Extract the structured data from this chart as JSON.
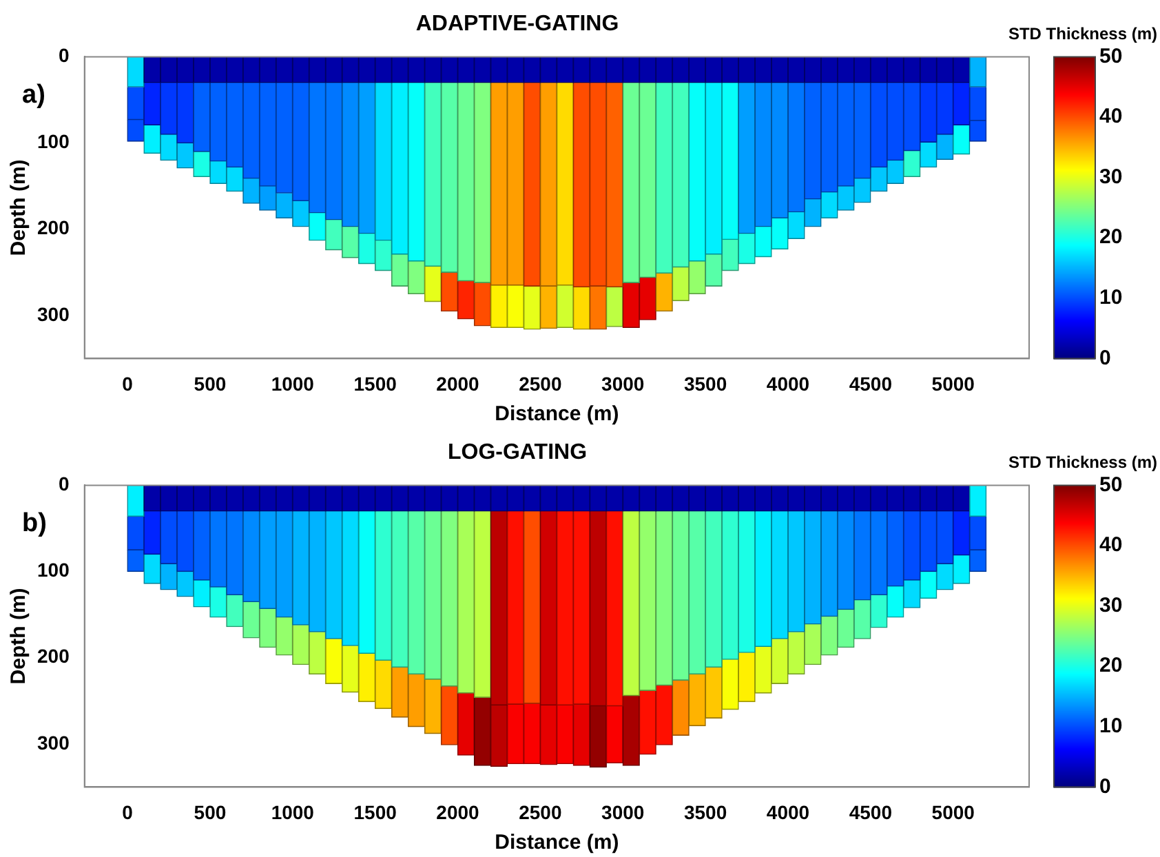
{
  "chart_data": [
    {
      "type": "bar",
      "title": "ADAPTIVE-GATING",
      "xlabel": "Distance (m)",
      "ylabel": "Depth (m)",
      "clabel": "STD Thickness (m)",
      "annotations": [
        "a)"
      ],
      "stacked": true,
      "x": [
        50,
        150,
        250,
        350,
        450,
        550,
        650,
        750,
        850,
        950,
        1050,
        1150,
        1250,
        1350,
        1450,
        1550,
        1650,
        1750,
        1850,
        1950,
        2050,
        2150,
        2250,
        2350,
        2450,
        2550,
        2650,
        2750,
        2850,
        2950,
        3050,
        3150,
        3250,
        3350,
        3450,
        3550,
        3650,
        3750,
        3850,
        3950,
        4050,
        4150,
        4250,
        4350,
        4450,
        4550,
        4650,
        4750,
        4850,
        4950,
        5050,
        5150
      ],
      "xlim": [
        0,
        5200
      ],
      "xticks": [
        0,
        500,
        1000,
        1500,
        2000,
        2500,
        3000,
        3500,
        4000,
        4500,
        5000
      ],
      "ylim": [
        350,
        0
      ],
      "yticks": [
        0,
        100,
        200,
        300
      ],
      "clim": [
        0,
        50
      ],
      "cticks": [
        0,
        10,
        20,
        30,
        40,
        50
      ],
      "series": [
        {
          "values": [
            35,
            30,
            30,
            30,
            30,
            30,
            30,
            30,
            30,
            30,
            30,
            30,
            30,
            30,
            30,
            30,
            30,
            30,
            30,
            30,
            30,
            30,
            30,
            30,
            30,
            30,
            30,
            30,
            30,
            30,
            30,
            30,
            30,
            30,
            30,
            30,
            30,
            30,
            30,
            30,
            30,
            30,
            30,
            30,
            30,
            30,
            30,
            30,
            30,
            30,
            30,
            35
          ],
          "cvalues": [
            17,
            2,
            2,
            2,
            2,
            2,
            2,
            2,
            2,
            2,
            2,
            2,
            2,
            2,
            2,
            2,
            2,
            2,
            2,
            2,
            2,
            2,
            2,
            2,
            2,
            2,
            2,
            2,
            2,
            2,
            2,
            2,
            2,
            2,
            2,
            2,
            2,
            2,
            2,
            2,
            2,
            2,
            2,
            2,
            2,
            2,
            2,
            2,
            2,
            2,
            2,
            15
          ],
          "colors": [
            "#00dbff",
            "#0000a8",
            "#0000a8",
            "#0000a8",
            "#0000a8",
            "#0000a8",
            "#0000a8",
            "#0000a8",
            "#0000a8",
            "#0000a8",
            "#0000a8",
            "#0000a8",
            "#0000a8",
            "#0000a8",
            "#0000a8",
            "#0000a8",
            "#0000a8",
            "#0000a8",
            "#0000a8",
            "#0000a8",
            "#0000a8",
            "#0000a8",
            "#0000a8",
            "#0000a8",
            "#0000a8",
            "#0000a8",
            "#0000a8",
            "#0000a8",
            "#0000a8",
            "#0000a8",
            "#0000a8",
            "#0000a8",
            "#0000a8",
            "#0000a8",
            "#0000a8",
            "#0000a8",
            "#0000a8",
            "#0000a8",
            "#0000a8",
            "#0000a8",
            "#0000a8",
            "#0000a8",
            "#0000a8",
            "#0000a8",
            "#0000a8",
            "#0000a8",
            "#0000a8",
            "#0000a8",
            "#0000a8",
            "#0000a8",
            "#0000a8",
            "#00b3ff"
          ]
        },
        {
          "values": [
            38,
            49,
            60,
            70,
            80,
            91,
            98,
            111,
            120,
            128,
            137,
            151,
            159,
            167,
            175,
            183,
            199,
            207,
            213,
            220,
            230,
            232,
            235,
            235,
            236,
            236,
            235,
            237,
            236,
            237,
            232,
            226,
            221,
            214,
            207,
            199,
            182,
            175,
            167,
            157,
            150,
            135,
            127,
            120,
            111,
            98,
            90,
            79,
            69,
            60,
            49,
            39
          ],
          "cvalues": [
            10,
            8,
            9,
            9,
            11,
            11,
            11,
            11,
            11,
            11,
            11,
            12,
            12,
            13,
            14,
            17,
            18,
            19,
            22,
            23,
            24,
            25,
            36,
            36,
            40,
            36,
            33,
            40,
            40,
            39,
            24,
            24,
            22,
            22,
            19,
            18,
            19,
            14,
            13,
            13,
            12,
            11,
            11,
            11,
            11,
            10,
            10,
            10,
            9,
            9,
            8,
            10
          ],
          "colors": [
            "#004dff",
            "#0024ff",
            "#0038ff",
            "#0038ff",
            "#0061ff",
            "#0061ff",
            "#0061ff",
            "#0061ff",
            "#0061ff",
            "#0061ff",
            "#0061ff",
            "#0075ff",
            "#0075ff",
            "#008aff",
            "#009eff",
            "#00dbff",
            "#00f0ff",
            "#05fffa",
            "#42ffbd",
            "#57ffa8",
            "#6bff94",
            "#80ff80",
            "#ff9e00",
            "#ff9e00",
            "#ff4d00",
            "#ff9e00",
            "#ffdb00",
            "#ff4d00",
            "#ff4d00",
            "#ff6100",
            "#6bff94",
            "#6bff94",
            "#42ffbd",
            "#42ffbd",
            "#05fffa",
            "#00f0ff",
            "#05fffa",
            "#009eff",
            "#008aff",
            "#008aff",
            "#0075ff",
            "#0061ff",
            "#0061ff",
            "#0061ff",
            "#0061ff",
            "#004dff",
            "#004dff",
            "#004dff",
            "#0038ff",
            "#0038ff",
            "#0024ff",
            "#004dff"
          ]
        },
        {
          "values": [
            25,
            33,
            30,
            29,
            29,
            26,
            28,
            29,
            28,
            29,
            30,
            32,
            35,
            36,
            35,
            35,
            37,
            38,
            41,
            45,
            44,
            50,
            49,
            49,
            50,
            49,
            49,
            49,
            50,
            46,
            52,
            49,
            44,
            39,
            38,
            37,
            36,
            35,
            35,
            36,
            31,
            32,
            30,
            28,
            28,
            28,
            27,
            30,
            29,
            29,
            34,
            24
          ],
          "cvalues": [
            10,
            18,
            17,
            16,
            20,
            17,
            17,
            15,
            14,
            15,
            16,
            19,
            22,
            23,
            20,
            21,
            24,
            25,
            30,
            40,
            42,
            40,
            32,
            31,
            30,
            35,
            29,
            33,
            38,
            28,
            45,
            45,
            35,
            28,
            26,
            23,
            22,
            20,
            19,
            19,
            17,
            15,
            17,
            16,
            16,
            16,
            16,
            21,
            17,
            15,
            19,
            10
          ],
          "colors": [
            "#004dff",
            "#00f0ff",
            "#00dbff",
            "#00c7ff",
            "#1affe6",
            "#00dbff",
            "#00dbff",
            "#00b3ff",
            "#009eff",
            "#00b3ff",
            "#00c7ff",
            "#05fffa",
            "#42ffbd",
            "#57ffa8",
            "#1affe6",
            "#2effd1",
            "#6bff94",
            "#80ff80",
            "#e6ff1a",
            "#ff4d00",
            "#ff2400",
            "#ff4d00",
            "#fff000",
            "#faff05",
            "#e6ff1a",
            "#ffb300",
            "#d1ff2e",
            "#ffdb00",
            "#ff7500",
            "#bdff42",
            "#e60000",
            "#e60000",
            "#ffb300",
            "#bdff42",
            "#94ff6b",
            "#57ffa8",
            "#42ffbd",
            "#1affe6",
            "#05fffa",
            "#05fffa",
            "#00dbff",
            "#00b3ff",
            "#00dbff",
            "#00c7ff",
            "#00c7ff",
            "#00c7ff",
            "#00c7ff",
            "#2effd1",
            "#00dbff",
            "#00b3ff",
            "#05fffa",
            "#004dff"
          ]
        }
      ]
    },
    {
      "type": "bar",
      "title": "LOG-GATING",
      "xlabel": "Distance (m)",
      "ylabel": "Depth (m)",
      "clabel": "STD Thickness (m)",
      "annotations": [
        "b)"
      ],
      "stacked": true,
      "x": [
        50,
        150,
        250,
        350,
        450,
        550,
        650,
        750,
        850,
        950,
        1050,
        1150,
        1250,
        1350,
        1450,
        1550,
        1650,
        1750,
        1850,
        1950,
        2050,
        2150,
        2250,
        2350,
        2450,
        2550,
        2650,
        2750,
        2850,
        2950,
        3050,
        3150,
        3250,
        3350,
        3450,
        3550,
        3650,
        3750,
        3850,
        3950,
        4050,
        4150,
        4250,
        4350,
        4450,
        4550,
        4650,
        4750,
        4850,
        4950,
        5050,
        5150
      ],
      "xlim": [
        0,
        5200
      ],
      "xticks": [
        0,
        500,
        1000,
        1500,
        2000,
        2500,
        3000,
        3500,
        4000,
        4500,
        5000
      ],
      "ylim": [
        350,
        0
      ],
      "yticks": [
        0,
        100,
        200,
        300
      ],
      "clim": [
        0,
        50
      ],
      "cticks": [
        0,
        10,
        20,
        30,
        40,
        50
      ],
      "series": [
        {
          "values": [
            36,
            30,
            30,
            30,
            30,
            30,
            30,
            30,
            30,
            30,
            30,
            30,
            30,
            30,
            30,
            30,
            30,
            30,
            30,
            30,
            30,
            30,
            30,
            30,
            30,
            30,
            30,
            30,
            30,
            30,
            30,
            30,
            30,
            30,
            30,
            30,
            30,
            30,
            30,
            30,
            30,
            30,
            30,
            30,
            30,
            30,
            30,
            30,
            30,
            30,
            30,
            36
          ],
          "cvalues": [
            18,
            2,
            2,
            2,
            2,
            2,
            2,
            2,
            2,
            2,
            2,
            2,
            2,
            2,
            2,
            2,
            2,
            2,
            2,
            2,
            2,
            2,
            2,
            2,
            2,
            2,
            2,
            2,
            2,
            2,
            2,
            2,
            2,
            2,
            2,
            2,
            2,
            2,
            2,
            2,
            2,
            2,
            2,
            2,
            2,
            2,
            2,
            2,
            2,
            2,
            2,
            18
          ],
          "colors": [
            "#00f0ff",
            "#0000a8",
            "#0000a8",
            "#0000a8",
            "#0000a8",
            "#0000a8",
            "#0000a8",
            "#0000a8",
            "#0000a8",
            "#0000a8",
            "#0000a8",
            "#0000a8",
            "#0000a8",
            "#0000a8",
            "#0000a8",
            "#0000a8",
            "#0000a8",
            "#0000a8",
            "#0000a8",
            "#0000a8",
            "#0000a8",
            "#0000a8",
            "#0000a8",
            "#0000a8",
            "#0000a8",
            "#0000a8",
            "#0000a8",
            "#0000a8",
            "#0000a8",
            "#0000a8",
            "#0000a8",
            "#0000a8",
            "#0000a8",
            "#0000a8",
            "#0000a8",
            "#0000a8",
            "#0000a8",
            "#0000a8",
            "#0000a8",
            "#0000a8",
            "#0000a8",
            "#0000a8",
            "#0000a8",
            "#0000a8",
            "#0000a8",
            "#0000a8",
            "#0000a8",
            "#0000a8",
            "#0000a8",
            "#0000a8",
            "#0000a8",
            "#00f0ff"
          ]
        },
        {
          "values": [
            39,
            50,
            61,
            70,
            80,
            88,
            97,
            105,
            113,
            123,
            132,
            140,
            148,
            156,
            165,
            173,
            181,
            189,
            195,
            203,
            211,
            216,
            225,
            224,
            223,
            225,
            225,
            224,
            226,
            226,
            214,
            208,
            202,
            196,
            189,
            181,
            172,
            164,
            157,
            148,
            140,
            131,
            122,
            114,
            103,
            97,
            87,
            80,
            70,
            61,
            51,
            39
          ],
          "cvalues": [
            10,
            8,
            10,
            10,
            11,
            12,
            12,
            13,
            14,
            14,
            15,
            15,
            16,
            17,
            19,
            21,
            22,
            23,
            24,
            25,
            27,
            28,
            47,
            43,
            40,
            46,
            43,
            43,
            47,
            43,
            28,
            26,
            25,
            24,
            23,
            22,
            21,
            20,
            18,
            17,
            16,
            15,
            14,
            13,
            12,
            12,
            11,
            10,
            10,
            10,
            8,
            10
          ],
          "colors": [
            "#004dff",
            "#0024ff",
            "#004dff",
            "#004dff",
            "#0061ff",
            "#0075ff",
            "#0075ff",
            "#008aff",
            "#009eff",
            "#009eff",
            "#00b3ff",
            "#00b3ff",
            "#00c7ff",
            "#00dbff",
            "#05fffa",
            "#2effd1",
            "#42ffbd",
            "#57ffa8",
            "#6bff94",
            "#80ff80",
            "#a8ff57",
            "#bdff42",
            "#bd0000",
            "#ff0f00",
            "#ff4d00",
            "#d10000",
            "#ff0f00",
            "#ff0f00",
            "#bd0000",
            "#ff0f00",
            "#bdff42",
            "#94ff6b",
            "#80ff80",
            "#6bff94",
            "#57ffa8",
            "#42ffbd",
            "#2effd1",
            "#1affe6",
            "#00f0ff",
            "#00dbff",
            "#00c7ff",
            "#00b3ff",
            "#009eff",
            "#008aff",
            "#0075ff",
            "#0075ff",
            "#0061ff",
            "#004dff",
            "#004dff",
            "#004dff",
            "#0024ff",
            "#004dff"
          ]
        },
        {
          "values": [
            25,
            34,
            30,
            29,
            31,
            35,
            37,
            42,
            45,
            44,
            46,
            49,
            52,
            54,
            56,
            56,
            58,
            61,
            63,
            68,
            72,
            79,
            71,
            69,
            70,
            69,
            68,
            71,
            71,
            66,
            81,
            74,
            69,
            64,
            60,
            59,
            58,
            57,
            54,
            52,
            49,
            47,
            45,
            44,
            45,
            38,
            36,
            32,
            31,
            30,
            33,
            25
          ],
          "cvalues": [
            11,
            17,
            15,
            16,
            18,
            20,
            22,
            24,
            25,
            26,
            27,
            28,
            31,
            30,
            32,
            33,
            36,
            36,
            35,
            40,
            45,
            49,
            47,
            44,
            44,
            45,
            44,
            45,
            49,
            44,
            48,
            43,
            43,
            37,
            35,
            34,
            31,
            32,
            30,
            29,
            28,
            27,
            25,
            24,
            23,
            21,
            19,
            17,
            19,
            17,
            18,
            11
          ],
          "colors": [
            "#0061ff",
            "#00dbff",
            "#00b3ff",
            "#00c7ff",
            "#00f0ff",
            "#1affe6",
            "#42ffbd",
            "#6bff94",
            "#80ff80",
            "#94ff6b",
            "#a8ff57",
            "#bdff42",
            "#faff05",
            "#e6ff1a",
            "#fff000",
            "#ffdb00",
            "#ff9e00",
            "#ff9e00",
            "#ffb300",
            "#ff4d00",
            "#e60000",
            "#940000",
            "#bd0000",
            "#fa0000",
            "#fa0000",
            "#e60000",
            "#fa0000",
            "#e60000",
            "#940000",
            "#fa0000",
            "#a80000",
            "#ff0f00",
            "#ff0f00",
            "#ff8a00",
            "#ffb300",
            "#ffc700",
            "#faff05",
            "#fff000",
            "#e6ff1a",
            "#d1ff2e",
            "#bdff42",
            "#a8ff57",
            "#80ff80",
            "#6bff94",
            "#57ffa8",
            "#2effd1",
            "#05fffa",
            "#00dbff",
            "#05fffa",
            "#00dbff",
            "#00f0ff",
            "#0061ff"
          ]
        }
      ]
    }
  ]
}
